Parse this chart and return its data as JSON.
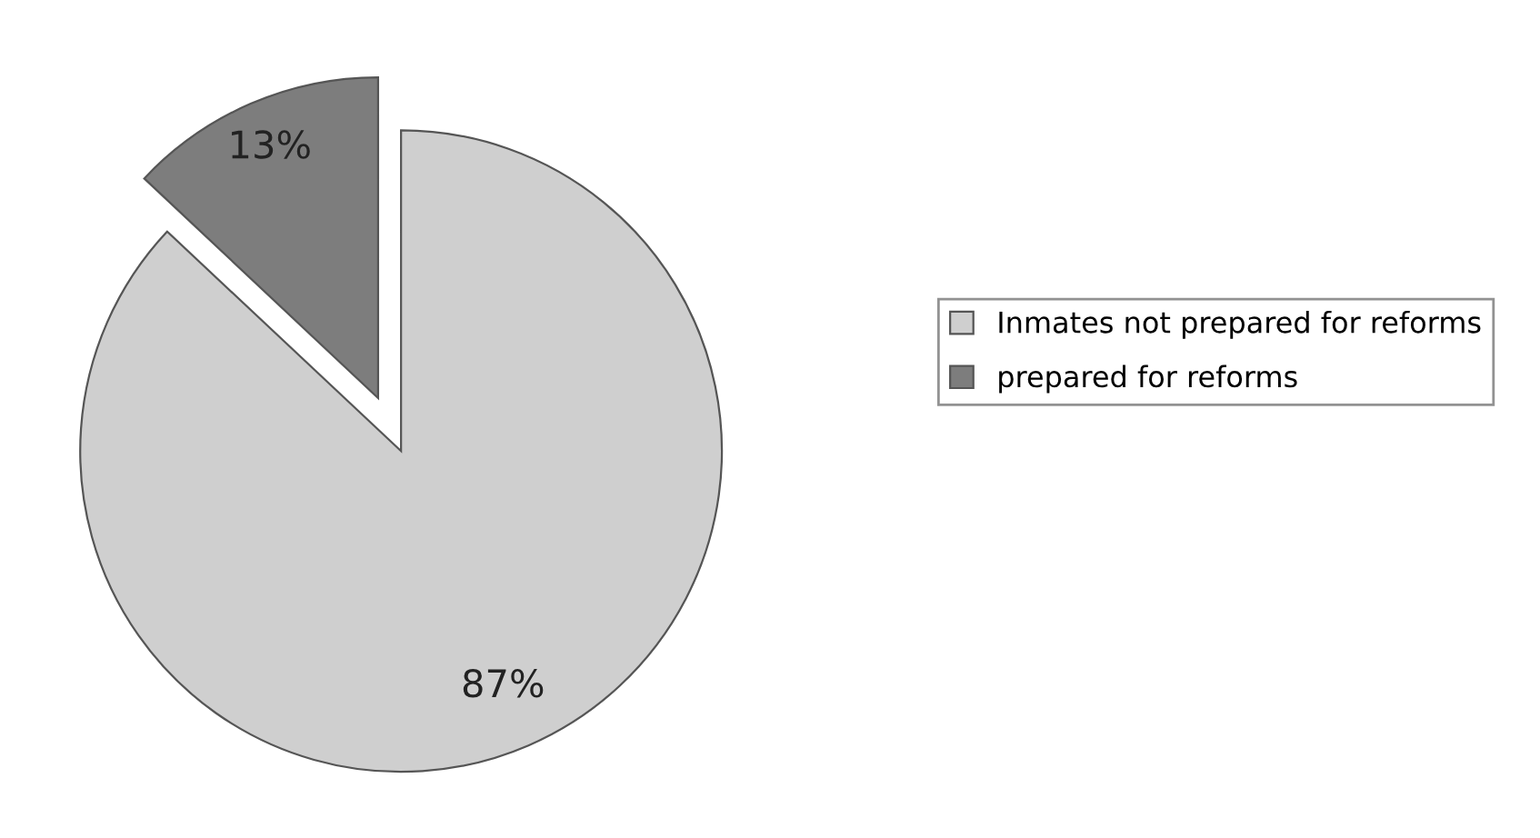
{
  "chart_data": {
    "type": "pie",
    "categories": [
      "Inmates not prepared for reforms",
      "prepared for reforms"
    ],
    "values": [
      87,
      13
    ],
    "colors": [
      "#cfcfcf",
      "#7d7d7d"
    ],
    "value_labels": [
      "87%",
      "13%"
    ],
    "legend": "right"
  }
}
